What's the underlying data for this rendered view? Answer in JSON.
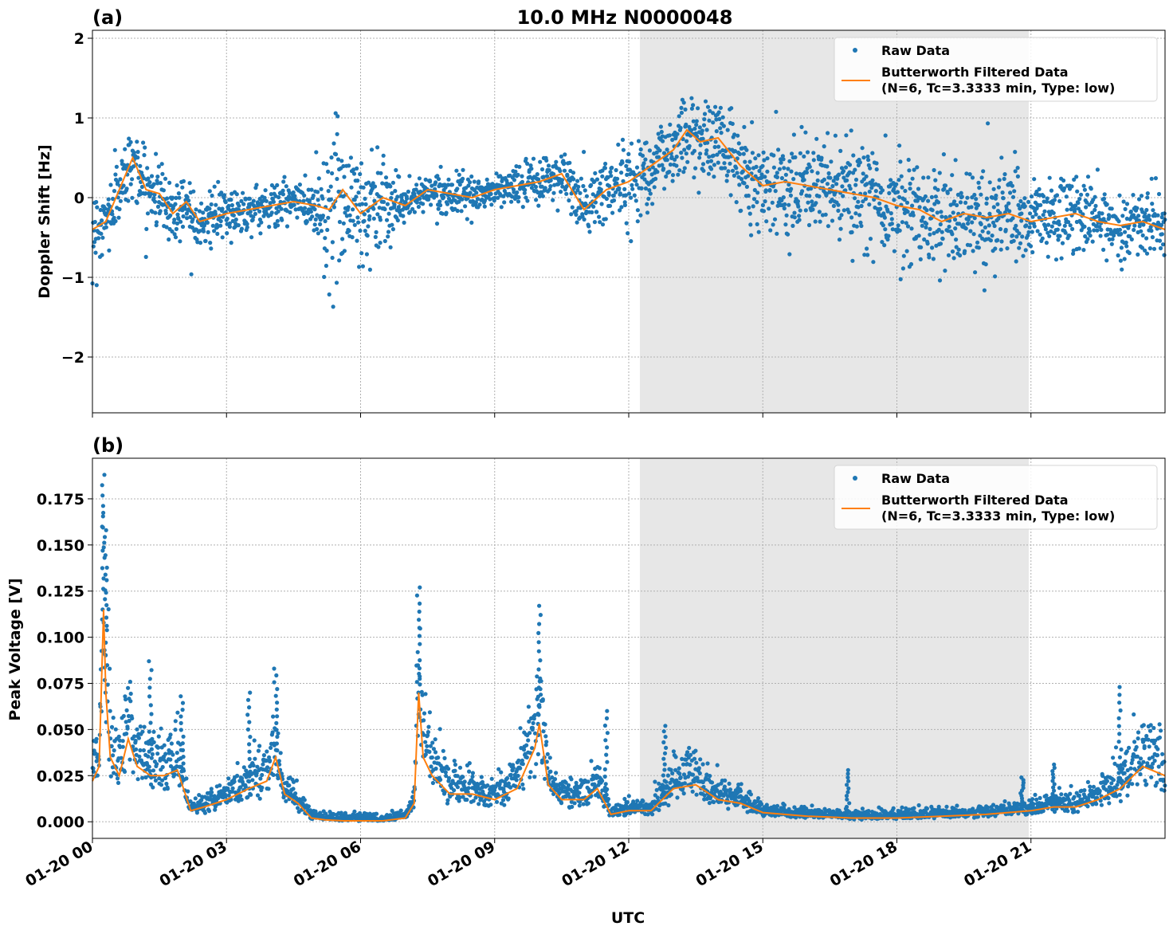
{
  "figure": {
    "title": "10.0 MHz N0000048",
    "xlabel": "UTC"
  },
  "colors": {
    "raw": "#1f77b4",
    "filtered": "#ff7f0e",
    "shade": "#e7e7e7",
    "grid": "#b0b0b0"
  },
  "legend": {
    "raw_label": "Raw Data",
    "filtered_label_line1": "Butterworth Filtered Data",
    "filtered_label_line2": "(N=6, Tc=3.3333 min, Type: low)",
    "placement": "top-right"
  },
  "chart_data": [
    {
      "type": "scatter",
      "panel_label": "(a)",
      "ylabel": "Doppler Shift [Hz]",
      "xlim_hours": [
        0,
        24
      ],
      "ylim": [
        -2.7,
        2.1
      ],
      "yticks": [
        -2,
        -1,
        0,
        1,
        2
      ],
      "ytick_labels": [
        "−2",
        "−1",
        "0",
        "1",
        "2"
      ],
      "grid": true,
      "shaded_interval_hours": [
        12.25,
        20.95
      ],
      "series": [
        {
          "name": "Butterworth Filtered Data",
          "kind": "line",
          "x_hours": [
            0,
            0.3,
            0.6,
            0.9,
            1.2,
            1.5,
            1.8,
            2.1,
            2.4,
            2.7,
            3.0,
            3.5,
            4.0,
            4.5,
            5.0,
            5.3,
            5.6,
            6.0,
            6.5,
            7.0,
            7.5,
            8.0,
            8.5,
            9.0,
            9.5,
            10.0,
            10.5,
            11.0,
            11.5,
            12.0,
            12.5,
            13.0,
            13.3,
            13.6,
            14.0,
            14.5,
            15.0,
            15.5,
            16.0,
            16.5,
            17.0,
            17.5,
            18.0,
            18.5,
            19.0,
            19.5,
            20.0,
            20.5,
            21.0,
            21.5,
            22.0,
            22.5,
            23.0,
            23.5,
            24.0
          ],
          "y": [
            -0.4,
            -0.3,
            0.1,
            0.5,
            0.1,
            0.05,
            -0.2,
            -0.05,
            -0.3,
            -0.25,
            -0.2,
            -0.15,
            -0.1,
            -0.05,
            -0.1,
            -0.15,
            0.1,
            -0.2,
            0.0,
            -0.1,
            0.1,
            0.05,
            0.0,
            0.1,
            0.15,
            0.2,
            0.3,
            -0.15,
            0.1,
            0.2,
            0.4,
            0.6,
            0.85,
            0.7,
            0.75,
            0.4,
            0.15,
            0.2,
            0.15,
            0.1,
            0.05,
            0.0,
            -0.1,
            -0.15,
            -0.3,
            -0.2,
            -0.25,
            -0.2,
            -0.3,
            -0.25,
            -0.2,
            -0.3,
            -0.35,
            -0.3,
            -0.4
          ]
        },
        {
          "name": "Raw Data",
          "kind": "points",
          "spread_x_hours": [
            0,
            0.5,
            1.0,
            2.0,
            3.0,
            4.0,
            4.9,
            5.3,
            5.8,
            6.5,
            7.0,
            8.0,
            9.0,
            10.0,
            11.0,
            12.0,
            13.0,
            13.5,
            14.0,
            15.0,
            16.0,
            17.0,
            18.0,
            19.0,
            20.0,
            21.0,
            22.0,
            23.0,
            24.0
          ],
          "spread_hz": [
            0.35,
            0.3,
            0.3,
            0.3,
            0.2,
            0.2,
            0.2,
            0.75,
            0.65,
            0.45,
            0.15,
            0.15,
            0.15,
            0.2,
            0.3,
            0.35,
            0.35,
            0.35,
            0.35,
            0.4,
            0.4,
            0.45,
            0.45,
            0.5,
            0.45,
            0.4,
            0.35,
            0.3,
            0.3
          ]
        }
      ]
    },
    {
      "type": "scatter",
      "panel_label": "(b)",
      "ylabel": "Peak Voltage [V]",
      "xlim_hours": [
        0,
        24
      ],
      "ylim": [
        -0.009,
        0.197
      ],
      "yticks": [
        0.0,
        0.025,
        0.05,
        0.075,
        0.1,
        0.125,
        0.15,
        0.175
      ],
      "ytick_labels": [
        "0.000",
        "0.025",
        "0.050",
        "0.075",
        "0.100",
        "0.125",
        "0.150",
        "0.175"
      ],
      "xticks_hours": [
        0,
        3,
        6,
        9,
        12,
        15,
        18,
        21
      ],
      "xtick_labels": [
        "01-20 00",
        "01-20 03",
        "01-20 06",
        "01-20 09",
        "01-20 12",
        "01-20 15",
        "01-20 18",
        "01-20 21"
      ],
      "grid": true,
      "shaded_interval_hours": [
        12.25,
        20.95
      ],
      "series": [
        {
          "name": "Butterworth Filtered Data",
          "kind": "line",
          "x_hours": [
            0,
            0.15,
            0.25,
            0.3,
            0.4,
            0.6,
            0.8,
            1.0,
            1.3,
            1.6,
            1.9,
            2.2,
            2.5,
            3.0,
            3.5,
            3.9,
            4.1,
            4.3,
            4.6,
            4.9,
            5.2,
            5.6,
            6.0,
            6.5,
            7.0,
            7.2,
            7.3,
            7.4,
            7.6,
            8.0,
            8.5,
            9.0,
            9.5,
            9.9,
            10.0,
            10.2,
            10.5,
            11.0,
            11.3,
            11.6,
            12.0,
            12.5,
            13.0,
            13.5,
            14.0,
            14.5,
            15.0,
            16.0,
            17.0,
            18.0,
            19.0,
            20.0,
            21.0,
            21.5,
            22.0,
            22.5,
            23.0,
            23.5,
            24.0
          ],
          "y": [
            0.022,
            0.03,
            0.115,
            0.07,
            0.035,
            0.025,
            0.045,
            0.03,
            0.025,
            0.025,
            0.028,
            0.006,
            0.008,
            0.012,
            0.018,
            0.022,
            0.035,
            0.015,
            0.01,
            0.002,
            0.001,
            0.0005,
            0.0005,
            0.0005,
            0.002,
            0.01,
            0.07,
            0.035,
            0.025,
            0.015,
            0.015,
            0.012,
            0.018,
            0.04,
            0.053,
            0.02,
            0.012,
            0.012,
            0.018,
            0.004,
            0.006,
            0.006,
            0.018,
            0.02,
            0.012,
            0.01,
            0.005,
            0.003,
            0.002,
            0.002,
            0.003,
            0.004,
            0.006,
            0.008,
            0.008,
            0.012,
            0.018,
            0.03,
            0.025
          ]
        },
        {
          "name": "Raw Data",
          "kind": "points",
          "peak_x_hours": [
            0.25,
            0.3,
            1.3,
            2.0,
            3.5,
            4.1,
            7.3,
            10.0,
            11.5,
            12.8,
            16.9,
            20.8,
            21.5,
            23.0
          ],
          "peak_v": [
            0.188,
            0.158,
            0.087,
            0.068,
            0.07,
            0.083,
            0.127,
            0.117,
            0.06,
            0.052,
            0.028,
            0.024,
            0.031,
            0.073
          ]
        }
      ]
    }
  ]
}
